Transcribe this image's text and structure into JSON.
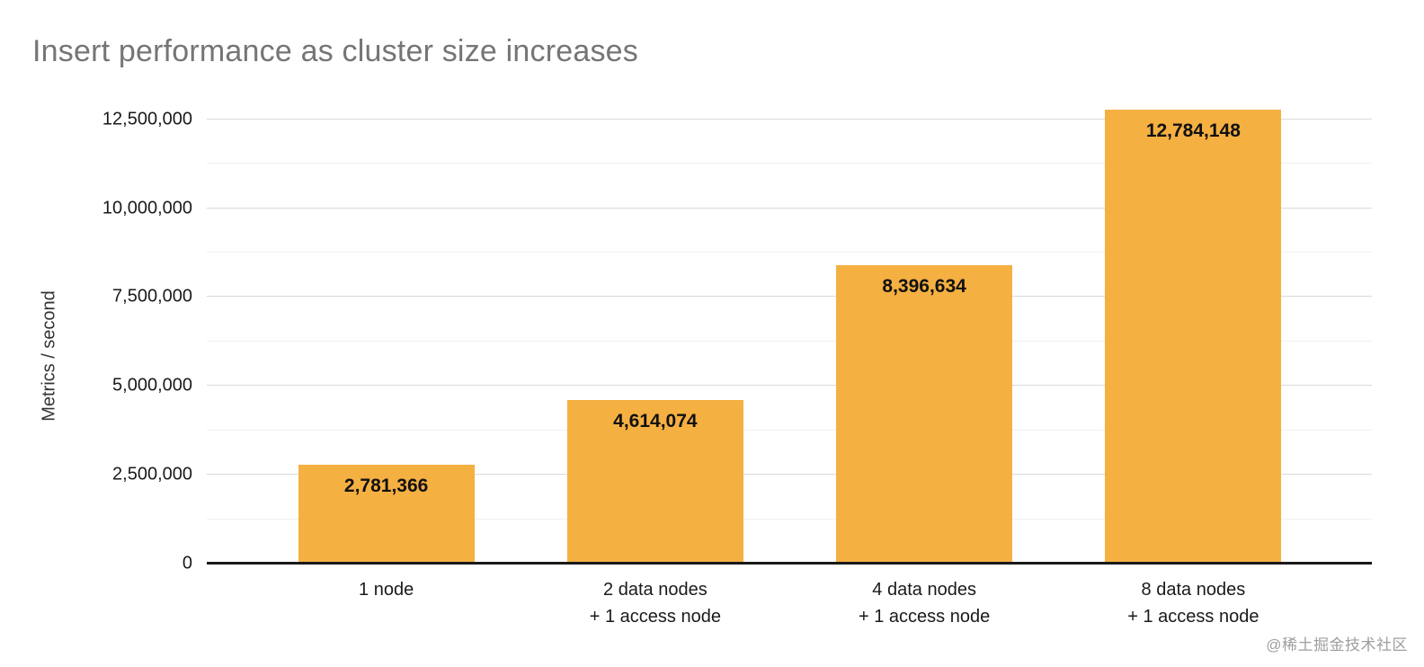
{
  "page": {
    "watermark": "@稀土掘金技术社区"
  },
  "chart_data": {
    "type": "bar",
    "title": "Insert performance as cluster size increases",
    "xlabel": "",
    "ylabel": "Metrics / second",
    "categories": [
      "1 node",
      "2 data nodes + 1 access node",
      "4 data nodes + 1 access node",
      "8 data nodes + 1 access node"
    ],
    "category_lines": [
      [
        "1 node"
      ],
      [
        "2 data nodes",
        "+ 1 access node"
      ],
      [
        "4 data nodes",
        "+ 1 access node"
      ],
      [
        "8 data nodes",
        "+ 1 access node"
      ]
    ],
    "values": [
      2781366,
      4614074,
      8396634,
      12784148
    ],
    "value_labels": [
      "2,781,366",
      "4,614,074",
      "8,396,634",
      "12,784,148"
    ],
    "ylim": [
      0,
      13000000
    ],
    "yticks": [
      0,
      2500000,
      5000000,
      7500000,
      10000000,
      12500000
    ],
    "ytick_labels": [
      "0",
      "2,500,000",
      "5,000,000",
      "7,500,000",
      "10,000,000",
      "12,500,000"
    ],
    "minor_tick_step": 1250000,
    "grid": true,
    "legend": "none",
    "colors": {
      "bar": "#F5B042",
      "title": "#757575",
      "axis_title": "#333333",
      "tick_label": "#1a1a1a",
      "value_label": "#111111",
      "axis_line": "#1a1a1a",
      "major_gridline": "#D9D9D9",
      "minor_gridline": "#F0F0F0",
      "watermark": "#9E9E9E",
      "background": "#FFFFFF"
    }
  }
}
